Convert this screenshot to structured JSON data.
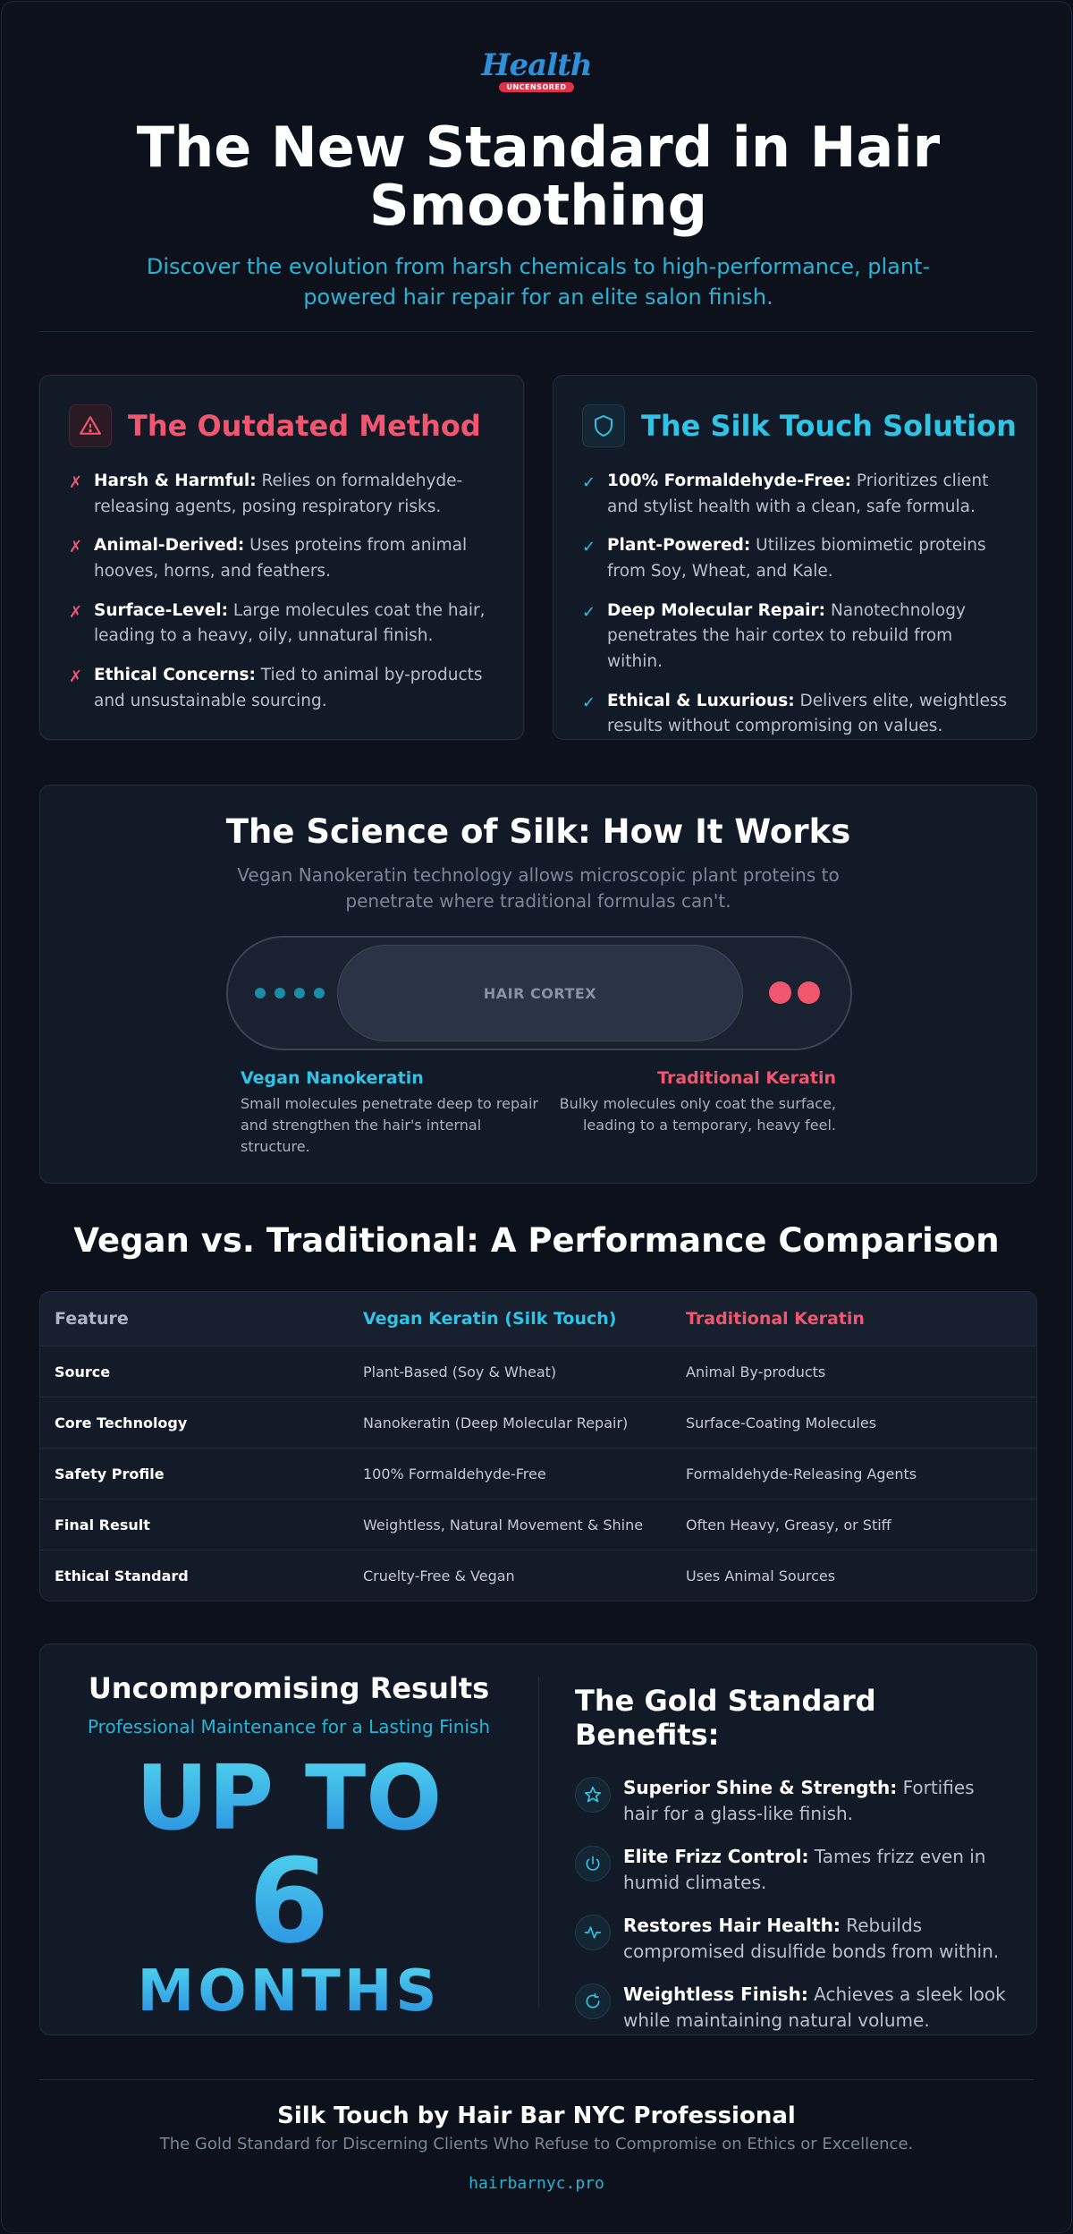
{
  "logo": {
    "word": "Health",
    "tag": "UNCENSORED"
  },
  "hero": {
    "title": "The New Standard in Hair Smoothing",
    "subtitle": "Discover the evolution from harsh chemicals to high-performance, plant-powered hair repair for an elite salon finish."
  },
  "outdated": {
    "title": "The Outdated Method",
    "icon": "warning-icon",
    "items": [
      {
        "bold": "Harsh & Harmful:",
        "text": " Relies on formaldehyde-releasing agents, posing respiratory risks."
      },
      {
        "bold": "Animal-Derived:",
        "text": " Uses proteins from animal hooves, horns, and feathers."
      },
      {
        "bold": "Surface-Level:",
        "text": " Large molecules coat the hair, leading to a heavy, oily, unnatural finish."
      },
      {
        "bold": "Ethical Concerns:",
        "text": " Tied to animal by-products and unsustainable sourcing."
      }
    ]
  },
  "solution": {
    "title": "The Silk Touch Solution",
    "icon": "shield-icon",
    "items": [
      {
        "bold": "100% Formaldehyde-Free:",
        "text": " Prioritizes client and stylist health with a clean, safe formula."
      },
      {
        "bold": "Plant-Powered:",
        "text": " Utilizes biomimetic proteins from Soy, Wheat, and Kale."
      },
      {
        "bold": "Deep Molecular Repair:",
        "text": " Nanotechnology penetrates the hair cortex to rebuild from within."
      },
      {
        "bold": "Ethical & Luxurious:",
        "text": " Delivers elite, weightless results without compromising on values."
      }
    ]
  },
  "science": {
    "title": "The Science of Silk: How It Works",
    "subtitle": "Vegan Nanokeratin technology allows microscopic plant proteins to penetrate where traditional formulas can't.",
    "cortex_label": "HAIR CORTEX",
    "vegan": {
      "title": "Vegan Nanokeratin",
      "text": "Small molecules penetrate deep to repair and strengthen the hair's internal structure."
    },
    "traditional": {
      "title": "Traditional Keratin",
      "text": "Bulky molecules only coat the surface, leading to a temporary, heavy feel."
    }
  },
  "comparison": {
    "title": "Vegan vs. Traditional: A Performance Comparison",
    "headers": [
      "Feature",
      "Vegan Keratin (Silk Touch)",
      "Traditional Keratin"
    ],
    "rows": [
      [
        "Source",
        "Plant-Based (Soy & Wheat)",
        "Animal By-products"
      ],
      [
        "Core Technology",
        "Nanokeratin (Deep Molecular Repair)",
        "Surface-Coating Molecules"
      ],
      [
        "Safety Profile",
        "100% Formaldehyde-Free",
        "Formaldehyde-Releasing Agents"
      ],
      [
        "Final Result",
        "Weightless, Natural Movement & Shine",
        "Often Heavy, Greasy, or Stiff"
      ],
      [
        "Ethical Standard",
        "Cruelty-Free & Vegan",
        "Uses Animal Sources"
      ]
    ]
  },
  "results": {
    "title": "Uncompromising Results",
    "subtitle": "Professional Maintenance for a Lasting Finish",
    "big1": "UP TO",
    "big2": "6",
    "big3": "MONTHS"
  },
  "benefits": {
    "title": "The Gold Standard Benefits:",
    "items": [
      {
        "icon": "star-icon",
        "bold": "Superior Shine & Strength:",
        "text": " Fortifies hair for a glass-like finish."
      },
      {
        "icon": "power-icon",
        "bold": "Elite Frizz Control:",
        "text": " Tames frizz even in humid climates."
      },
      {
        "icon": "pulse-icon",
        "bold": "Restores Hair Health:",
        "text": " Rebuilds compromised disulfide bonds from within."
      },
      {
        "icon": "refresh-icon",
        "bold": "Weightless Finish:",
        "text": " Achieves a sleek look while maintaining natural volume."
      }
    ]
  },
  "footer": {
    "title": "Silk Touch by Hair Bar NYC Professional",
    "subtitle": "The Gold Standard for Discerning Clients Who Refuse to Compromise on Ethics or Excellence.",
    "link": "hairbarnyc.pro"
  },
  "colors": {
    "accent_blue": "#2fc3e6",
    "accent_red": "#f0566e",
    "background": "#0c111b"
  }
}
